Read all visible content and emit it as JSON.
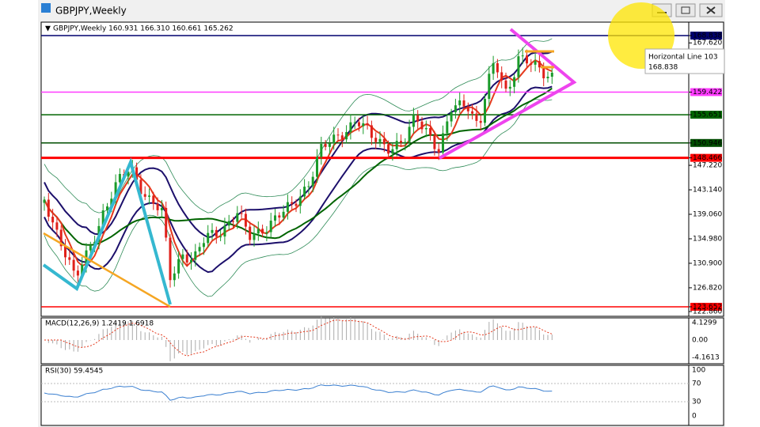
{
  "window": {
    "title": "GBPJPY,Weekly"
  },
  "chart": {
    "header": "GBPJPY,Weekly  160.931 166.310 160.661 165.262",
    "price_labels": [
      "168.838",
      "167.620",
      "159.422",
      "155.651",
      "150.946",
      "148.466",
      "147.220",
      "143.140",
      "139.060",
      "134.980",
      "130.900",
      "126.820",
      "123.652",
      "122.860"
    ],
    "tooltip": {
      "name": "Horizontal Line 103",
      "price": "168.838"
    }
  },
  "macd": {
    "label": "MACD(12,26,9) 1.2419 1.6918",
    "scale": [
      "4.1299",
      "0.00",
      "-4.1613"
    ]
  },
  "rsi": {
    "label": "RSI(30) 59.4545",
    "scale": [
      "100",
      "70",
      "30",
      "0"
    ]
  }
}
